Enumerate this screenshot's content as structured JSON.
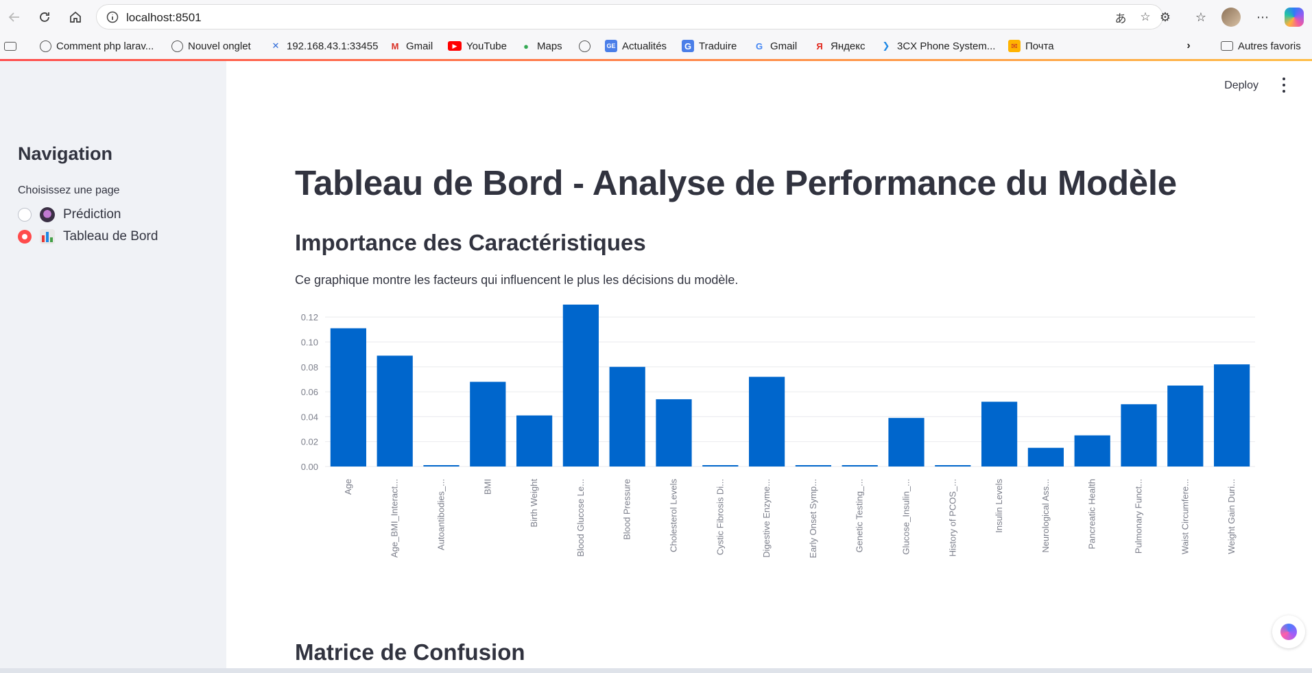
{
  "browser": {
    "url": "localhost:8501",
    "bookmarks": [
      {
        "label": "Comment php larav...",
        "icon": "globe-icon"
      },
      {
        "label": "Nouvel onglet",
        "icon": "globe-icon"
      },
      {
        "label": "192.168.43.1:33455",
        "icon": "x-logo-icon"
      },
      {
        "label": "Gmail",
        "icon": "gmail-icon"
      },
      {
        "label": "YouTube",
        "icon": "youtube-icon"
      },
      {
        "label": "Maps",
        "icon": "maps-pin-icon"
      },
      {
        "label": "",
        "icon": "globe-icon"
      },
      {
        "label": "Actualités",
        "icon": "news-icon"
      },
      {
        "label": "Traduire",
        "icon": "translate-icon"
      },
      {
        "label": "Gmail",
        "icon": "google-icon"
      },
      {
        "label": "Яндекс",
        "icon": "yandex-icon"
      },
      {
        "label": "3CX Phone System...",
        "icon": "3cx-icon"
      },
      {
        "label": "Почта",
        "icon": "mail-icon"
      }
    ],
    "other_favorites": "Autres favoris"
  },
  "app": {
    "deploy_label": "Deploy",
    "sidebar": {
      "title": "Navigation",
      "radio_label": "Choisissez une page",
      "options": [
        {
          "label": "Prédiction",
          "selected": false
        },
        {
          "label": "Tableau de Bord",
          "selected": true
        }
      ]
    },
    "page_title": "Tableau de Bord - Analyse de Performance du Modèle",
    "section1_title": "Importance des Caractéristiques",
    "section1_text": "Ce graphique montre les facteurs qui influencent le plus les décisions du modèle.",
    "section2_title": "Matrice de Confusion"
  },
  "colors": {
    "bar": "#0066cc",
    "accent": "#ff4b4b"
  },
  "chart_data": {
    "type": "bar",
    "categories": [
      "Age",
      "Age_BMI_Interact...",
      "Autoantibodies_...",
      "BMI",
      "Birth Weight",
      "Blood Glucose Le...",
      "Blood Pressure",
      "Cholesterol Levels",
      "Cystic Fibrosis Di...",
      "Digestive Enzyme...",
      "Early Onset Symp...",
      "Genetic Testing_...",
      "Glucose_Insulin_...",
      "History of PCOS_...",
      "Insulin Levels",
      "Neurological Ass...",
      "Pancreatic Health",
      "Pulmonary Funct...",
      "Waist Circumfere...",
      "Weight Gain Duri..."
    ],
    "values": [
      0.111,
      0.089,
      0.001,
      0.068,
      0.041,
      0.13,
      0.08,
      0.054,
      0.001,
      0.072,
      0.001,
      0.001,
      0.039,
      0.001,
      0.052,
      0.015,
      0.025,
      0.05,
      0.065,
      0.082
    ],
    "yticks": [
      "0.00",
      "0.02",
      "0.04",
      "0.06",
      "0.08",
      "0.10",
      "0.12"
    ],
    "ylim": [
      0,
      0.13
    ],
    "grid": true
  }
}
